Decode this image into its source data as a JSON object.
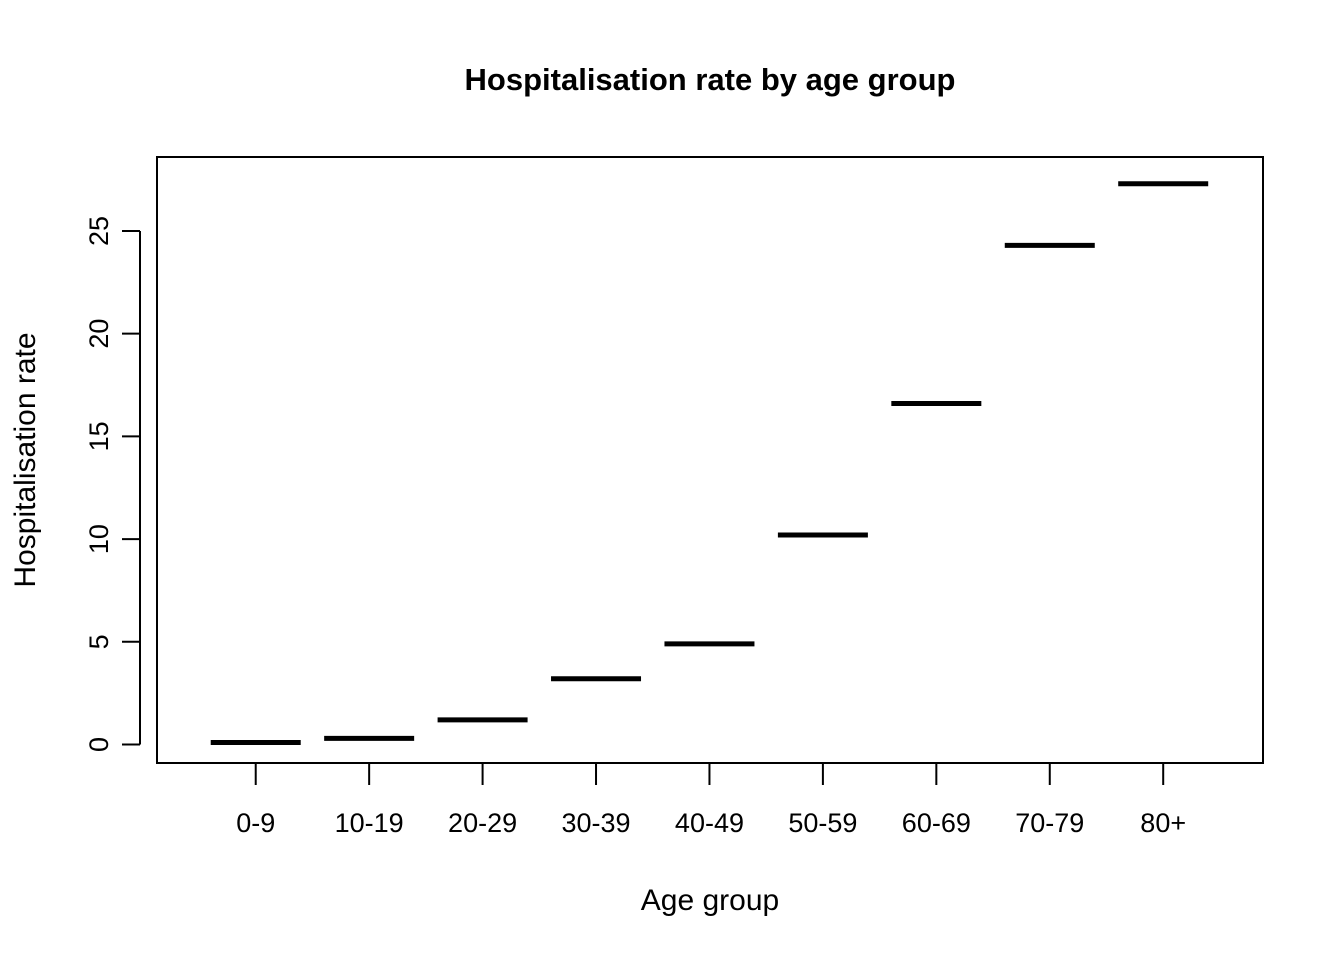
{
  "chart_data": {
    "type": "scatter",
    "marker": "horizontal-segment",
    "title": "Hospitalisation rate by age group",
    "xlabel": "Age group",
    "ylabel": "Hospitalisation rate",
    "categories": [
      "0-9",
      "10-19",
      "20-29",
      "30-39",
      "40-49",
      "50-59",
      "60-69",
      "70-79",
      "80+"
    ],
    "values": [
      0.1,
      0.3,
      1.2,
      3.2,
      4.9,
      10.2,
      16.6,
      24.3,
      27.3
    ],
    "yticks": [
      0,
      5,
      10,
      15,
      20,
      25
    ],
    "ylim": [
      -0.9,
      28.6
    ],
    "grid": false,
    "legend": "none",
    "colors": {
      "marks": "#000000",
      "axes": "#000000",
      "background": "#ffffff"
    }
  }
}
